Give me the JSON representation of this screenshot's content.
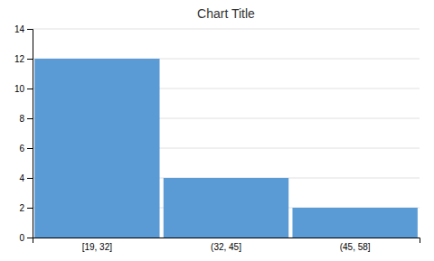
{
  "chart_data": {
    "type": "bar",
    "title": "Chart Title",
    "categories": [
      "[19, 32]",
      "(32, 45]",
      "(45, 58]"
    ],
    "values": [
      12,
      4,
      2
    ],
    "color": "#5B9BD5",
    "ylim": [
      0,
      14
    ],
    "yticks": [
      0,
      2,
      4,
      6,
      8,
      10,
      12,
      14
    ],
    "grid": true
  }
}
